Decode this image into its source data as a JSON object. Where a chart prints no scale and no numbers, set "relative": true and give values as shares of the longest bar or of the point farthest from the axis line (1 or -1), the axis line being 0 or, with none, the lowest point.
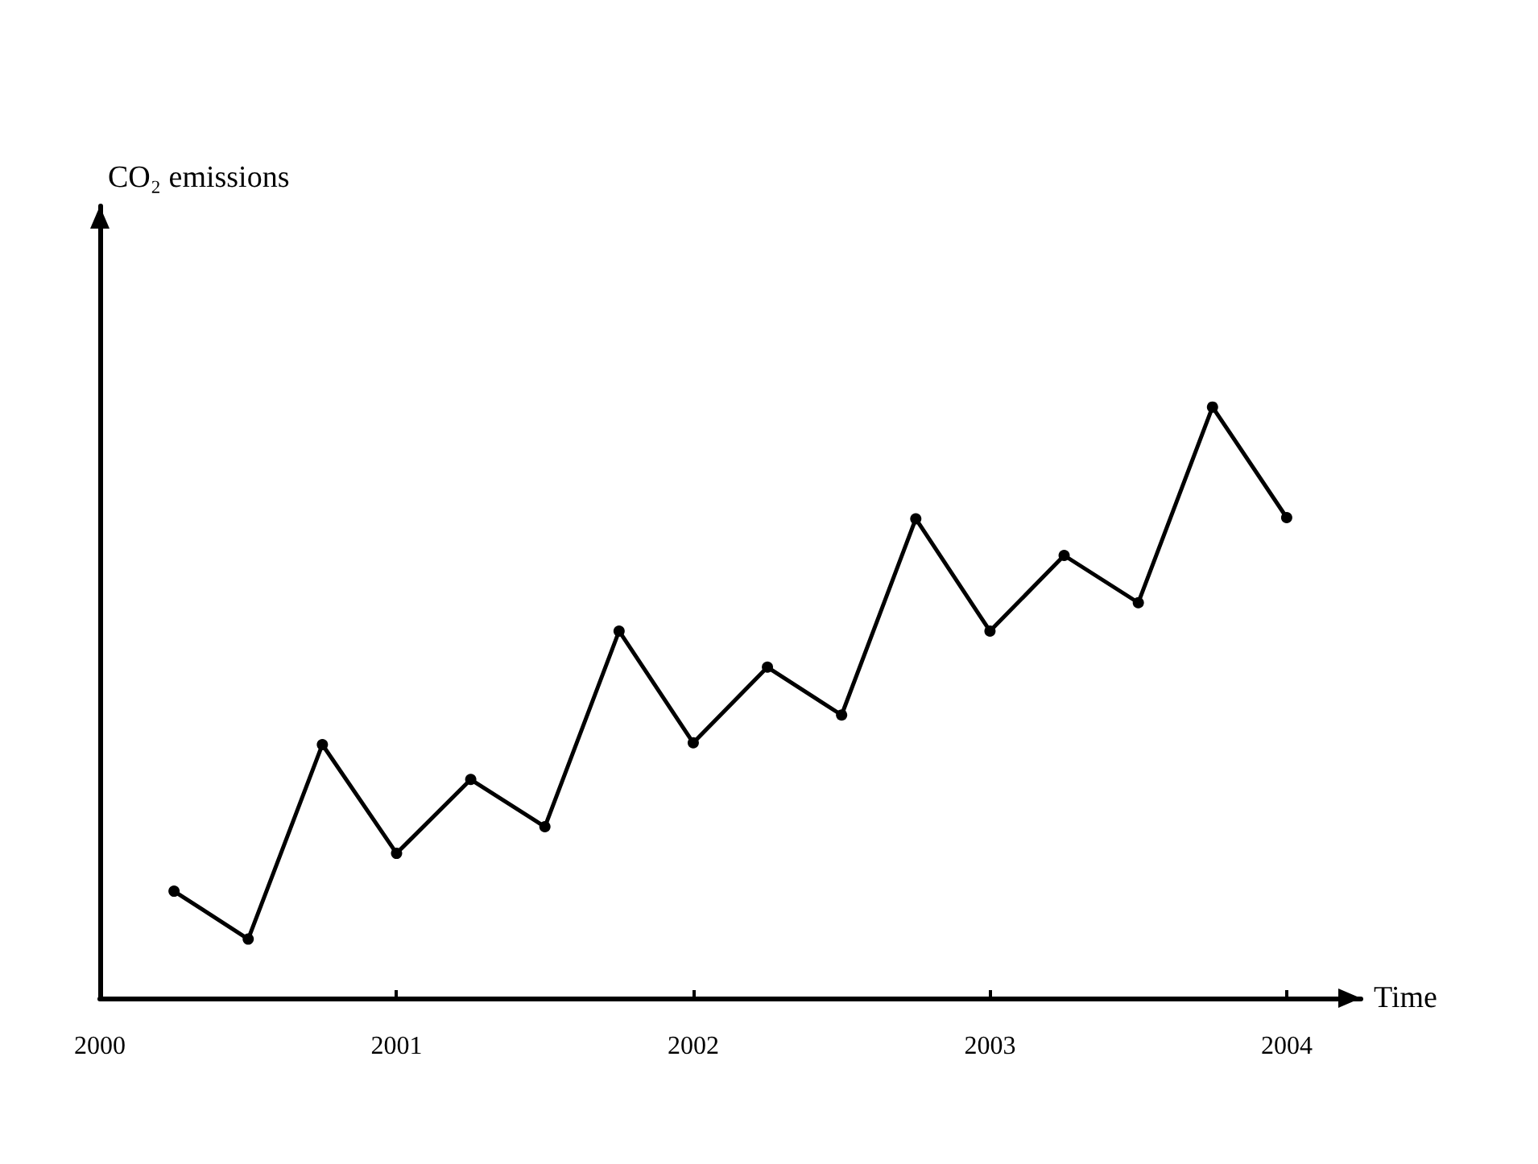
{
  "chart_data": {
    "type": "line",
    "xlabel": "Time",
    "annotations": [
      "CO₂ emissions"
    ],
    "x": [
      2000.25,
      2000.5,
      2000.75,
      2001,
      2001.25,
      2001.5,
      2001.75,
      2002,
      2002.25,
      2002.5,
      2002.75,
      2003,
      2003.25,
      2003.5,
      2003.75,
      2004
    ],
    "series": [
      {
        "color": "#000000",
        "values": [
          0.181,
          0.1,
          0.429,
          0.245,
          0.37,
          0.29,
          0.621,
          0.432,
          0.56,
          0.479,
          0.811,
          0.621,
          0.749,
          0.669,
          1,
          0.813
        ]
      }
    ],
    "relative": true,
    "xlim": [
      2000,
      2004.25
    ],
    "xticks": [
      2000,
      2001,
      2002,
      2003,
      2004
    ],
    "tick_labels": "x",
    "grid": false,
    "marker": "circle",
    "line_style": "solid"
  }
}
